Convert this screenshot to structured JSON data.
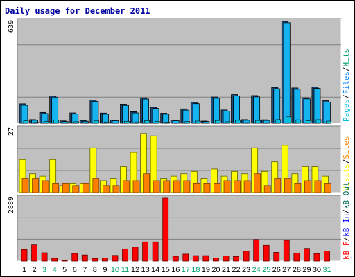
{
  "title": "Daily usage for December 2011",
  "colors": {
    "pages": "#00c0e0",
    "files": "#0080ff",
    "hits": "#00a070",
    "visits": "#ffff00",
    "sites": "#ff8000",
    "kb_out": "#006b54",
    "kb_in": "#0000ff",
    "kb_f": "#ff0000",
    "weekend": "#00a070",
    "weekday": "#000000",
    "panel_bg": "#c0c0c0"
  },
  "chart_data": [
    {
      "type": "bar",
      "panel": "hits-files-pages",
      "max_label": "639",
      "legend": [
        {
          "text": "Pages",
          "color": "#00c0e0"
        },
        {
          "text": "/",
          "color": "#000000"
        },
        {
          "text": "Files",
          "color": "#0080ff"
        },
        {
          "text": "/",
          "color": "#000000"
        },
        {
          "text": "Hits",
          "color": "#00a070"
        }
      ],
      "ylim": [
        0,
        639
      ],
      "categories": [
        "1",
        "2",
        "3",
        "4",
        "5",
        "6",
        "7",
        "8",
        "9",
        "10",
        "11",
        "12",
        "13",
        "14",
        "15",
        "16",
        "17",
        "18",
        "19",
        "20",
        "21",
        "22",
        "23",
        "24",
        "25",
        "26",
        "27",
        "28",
        "29",
        "30",
        "31"
      ],
      "series": [
        {
          "name": "Hits",
          "values": [
            122,
            22,
            68,
            172,
            14,
            65,
            17,
            145,
            64,
            19,
            120,
            72,
            160,
            100,
            63,
            19,
            90,
            131,
            13,
            165,
            83,
            180,
            22,
            174,
            21,
            225,
            639,
            222,
            160,
            227,
            141
          ]
        },
        {
          "name": "Files",
          "values": [
            113,
            18,
            61,
            164,
            10,
            58,
            12,
            137,
            57,
            15,
            112,
            65,
            152,
            93,
            57,
            15,
            82,
            123,
            10,
            157,
            76,
            172,
            18,
            166,
            17,
            217,
            631,
            214,
            153,
            219,
            133
          ]
        },
        {
          "name": "Pages",
          "values": [
            15,
            5,
            10,
            20,
            3,
            9,
            4,
            14,
            8,
            3,
            12,
            8,
            16,
            12,
            7,
            3,
            10,
            13,
            2,
            17,
            9,
            18,
            4,
            17,
            4,
            22,
            40,
            21,
            16,
            22,
            13
          ]
        }
      ]
    },
    {
      "type": "bar",
      "panel": "visits-sites",
      "max_label": "27",
      "legend": [
        {
          "text": "Visits",
          "color": "#ffff00"
        },
        {
          "text": "/",
          "color": "#000000"
        },
        {
          "text": "Sites",
          "color": "#ff8000"
        }
      ],
      "ylim": [
        0,
        27
      ],
      "categories": [
        "1",
        "2",
        "3",
        "4",
        "5",
        "6",
        "7",
        "8",
        "9",
        "10",
        "11",
        "12",
        "13",
        "14",
        "15",
        "16",
        "17",
        "18",
        "19",
        "20",
        "21",
        "22",
        "23",
        "24",
        "25",
        "26",
        "27",
        "28",
        "29",
        "30",
        "31"
      ],
      "series": [
        {
          "name": "Visits",
          "values": [
            14,
            8,
            7,
            14,
            3,
            4,
            4,
            19,
            5,
            6,
            11,
            17,
            25,
            24,
            6,
            7,
            8,
            9,
            6,
            10,
            7,
            9,
            8,
            19,
            9,
            13,
            20,
            8,
            11,
            11,
            7
          ]
        },
        {
          "name": "Sites",
          "values": [
            6,
            6,
            5,
            4,
            4,
            3,
            4,
            6,
            3,
            3,
            5,
            5,
            8,
            5,
            5,
            5,
            5,
            4,
            4,
            4,
            5,
            5,
            5,
            8,
            3,
            6,
            6,
            4,
            5,
            5,
            4
          ]
        }
      ]
    },
    {
      "type": "bar",
      "panel": "kbytes",
      "max_label": "2889",
      "legend": [
        {
          "text": "kB F",
          "color": "#ff0000"
        },
        {
          "text": "/",
          "color": "#000000"
        },
        {
          "text": "kB In",
          "color": "#0000ff"
        },
        {
          "text": "/",
          "color": "#000000"
        },
        {
          "text": "kB Out",
          "color": "#006b54"
        }
      ],
      "ylim": [
        0,
        2889
      ],
      "categories": [
        "1",
        "2",
        "3",
        "4",
        "5",
        "6",
        "7",
        "8",
        "9",
        "10",
        "11",
        "12",
        "13",
        "14",
        "15",
        "16",
        "17",
        "18",
        "19",
        "20",
        "21",
        "22",
        "23",
        "24",
        "25",
        "26",
        "27",
        "28",
        "29",
        "30",
        "31"
      ],
      "series": [
        {
          "name": "kB F",
          "values": [
            530,
            740,
            380,
            130,
            30,
            350,
            280,
            120,
            140,
            260,
            560,
            640,
            880,
            880,
            2889,
            220,
            320,
            250,
            250,
            140,
            240,
            210,
            450,
            990,
            720,
            400,
            950,
            370,
            580,
            340,
            460
          ]
        }
      ]
    }
  ],
  "weekend_days": [
    3,
    4,
    10,
    11,
    17,
    18,
    24,
    25,
    31
  ]
}
